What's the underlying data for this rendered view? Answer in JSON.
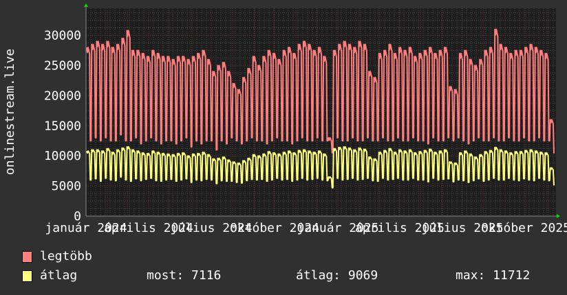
{
  "chart_data": {
    "type": "line",
    "ylabel": "onlinestream.live",
    "xlabel": "",
    "ylim": [
      0,
      34500
    ],
    "yticks": [
      0,
      5000,
      10000,
      15000,
      20000,
      25000,
      30000
    ],
    "xlim": [
      "2024-01-01",
      "2025-11-14"
    ],
    "xtick_labels": [
      "január 2024",
      "április 2024",
      "július 2024",
      "október 2024",
      "január 2025",
      "április 2025",
      "július 2025",
      "október 2025"
    ],
    "grid": true,
    "legend_placement": "bottom-left",
    "sampling": "weekly (weekday level / weekend level)",
    "series": [
      {
        "name": "legtöbb",
        "color": "#ff7f7f",
        "weekday_values": [
          28000,
          28500,
          29000,
          28500,
          29000,
          28000,
          28500,
          29500,
          30800,
          27500,
          27500,
          27000,
          26500,
          27500,
          27000,
          26500,
          26500,
          26000,
          26500,
          26500,
          26000,
          26500,
          27000,
          27500,
          26000,
          24000,
          25000,
          25500,
          24000,
          22000,
          21000,
          23000,
          24500,
          26500,
          25000,
          26500,
          27500,
          27000,
          26000,
          27500,
          28000,
          27000,
          28500,
          29000,
          28500,
          27500,
          28000,
          26500,
          13000,
          27500,
          28500,
          29000,
          28500,
          28000,
          29000,
          28500,
          24000,
          23000,
          27000,
          27500,
          28500,
          27000,
          28000,
          27500,
          28000,
          26500,
          27000,
          27500,
          28000,
          27000,
          27500,
          28000,
          21500,
          21000,
          27000,
          27500,
          26000,
          25000,
          26000,
          27500,
          28000,
          31000,
          28500,
          28000,
          27000,
          27500,
          27500,
          28000,
          28500,
          28000,
          27500,
          27000,
          16000
        ],
        "weekend_values": [
          12500,
          13000,
          12500,
          13000,
          12500,
          12500,
          13500,
          12500,
          12500,
          13000,
          12000,
          12500,
          13000,
          12500,
          12000,
          12500,
          12500,
          12000,
          12500,
          13000,
          11500,
          12500,
          12000,
          12500,
          12500,
          11000,
          12500,
          12000,
          13000,
          12500,
          12000,
          12500,
          13000,
          12500,
          12500,
          12000,
          12500,
          13000,
          12500,
          12500,
          12000,
          12500,
          13000,
          12500,
          12500,
          13000,
          12500,
          12500,
          10500,
          13000,
          12500,
          12500,
          13000,
          12500,
          12500,
          13000,
          12500,
          12500,
          13000,
          12500,
          12500,
          13000,
          12500,
          12500,
          13000,
          12500,
          12500,
          12000,
          13000,
          12500,
          12500,
          13000,
          12500,
          13000,
          12500,
          12000,
          12500,
          13000,
          12500,
          12500,
          13000,
          12500,
          12500,
          13000,
          12500,
          12500,
          13000,
          12500,
          12500,
          13000,
          12500,
          12500,
          10500
        ]
      },
      {
        "name": "átlag",
        "color": "#ffff7f",
        "weekday_values": [
          10800,
          11000,
          11000,
          10800,
          11200,
          10600,
          11000,
          11300,
          11500,
          11000,
          10800,
          10500,
          10400,
          10800,
          10600,
          10400,
          10300,
          10200,
          10400,
          10500,
          10000,
          10300,
          10400,
          10600,
          10200,
          9500,
          9600,
          9800,
          9300,
          9000,
          8800,
          9200,
          9600,
          10200,
          10000,
          10300,
          10700,
          10500,
          10300,
          10600,
          10800,
          10500,
          10900,
          11000,
          10800,
          10600,
          10800,
          10300,
          6500,
          11200,
          11400,
          11500,
          11300,
          11000,
          11300,
          11100,
          9800,
          9500,
          10600,
          10900,
          11200,
          10600,
          11000,
          10800,
          11000,
          10500,
          10700,
          10900,
          11100,
          10600,
          10800,
          11000,
          9000,
          8800,
          10500,
          10800,
          10300,
          9800,
          10200,
          10700,
          10900,
          11400,
          11000,
          10800,
          10500,
          10700,
          10700,
          10900,
          11000,
          10800,
          10600,
          10500,
          8000
        ],
        "weekend_values": [
          6000,
          6200,
          5800,
          6300,
          6000,
          5900,
          6500,
          6000,
          5800,
          6200,
          5900,
          6100,
          6300,
          5900,
          5800,
          6000,
          6100,
          5800,
          6000,
          6200,
          5600,
          6000,
          5900,
          6100,
          6000,
          5400,
          5900,
          5800,
          5800,
          5600,
          5500,
          5900,
          6100,
          6000,
          6100,
          5800,
          6000,
          6300,
          6000,
          6100,
          5800,
          6000,
          6300,
          6000,
          6100,
          6300,
          6000,
          5900,
          4700,
          6300,
          6000,
          6100,
          6300,
          6000,
          6100,
          6300,
          5900,
          5800,
          6300,
          6000,
          6100,
          6300,
          6000,
          6000,
          6300,
          6000,
          6000,
          5700,
          6300,
          6000,
          6100,
          6200,
          5700,
          6000,
          5900,
          5600,
          5900,
          6200,
          5800,
          6000,
          6300,
          6000,
          6000,
          6300,
          6000,
          5900,
          6200,
          6000,
          5900,
          6300,
          6000,
          5900,
          5200
        ]
      }
    ]
  },
  "legend": {
    "items": [
      {
        "label": "legtöbb",
        "color": "#ff7f7f"
      },
      {
        "label": "átlag",
        "color": "#ffff7f"
      }
    ],
    "stats": {
      "current": "most: 7116",
      "average": "átlag: 9069",
      "maximum": "max: 11712"
    }
  }
}
